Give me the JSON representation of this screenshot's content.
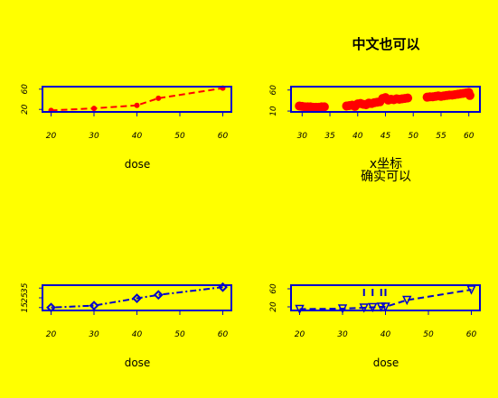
{
  "page": {
    "background": "#ffff00"
  },
  "chart_data": [
    {
      "type": "line",
      "title": "",
      "xlabel": "dose",
      "ylabel": "",
      "xlim": [
        18,
        62
      ],
      "ylim": [
        15,
        65
      ],
      "xticks": [
        "20",
        "30",
        "40",
        "50",
        "60"
      ],
      "yticks": [
        "20",
        "60"
      ],
      "grid": false,
      "series": [
        {
          "color": "#ff0000",
          "line": "dashed",
          "marker": "filled-circle",
          "x": [
            20,
            30,
            40,
            45,
            60
          ],
          "y": [
            18,
            22,
            28,
            42,
            62
          ]
        }
      ]
    },
    {
      "type": "scatter",
      "title": "中文也可以",
      "xlabel": "x坐标",
      "xlabel2": "确实可以",
      "ylabel": "",
      "xlim": [
        28,
        62
      ],
      "ylim": [
        8,
        68
      ],
      "xticks": [
        "30",
        "35",
        "40",
        "45",
        "50",
        "55",
        "60"
      ],
      "yticks": [
        "10",
        "60"
      ],
      "grid": false,
      "series": [
        {
          "color": "#ff0000",
          "marker": "filled-circle-large",
          "x": [
            29.5,
            30,
            30.5,
            31,
            31.5,
            32,
            32.5,
            33,
            33.5,
            34,
            38,
            38.5,
            39,
            39.5,
            40,
            40.5,
            41,
            41.5,
            42,
            42.5,
            43,
            43.5,
            44,
            44.5,
            45,
            45.5,
            46,
            46.5,
            47,
            47.5,
            48,
            48.5,
            49,
            52.5,
            53,
            53.5,
            54,
            54.5,
            55,
            55.5,
            56,
            56.5,
            57,
            57.5,
            58,
            58.5,
            59,
            59.5,
            60,
            60.2
          ],
          "y": [
            22,
            21,
            20,
            20,
            20,
            19,
            19,
            19,
            20,
            20,
            22,
            23,
            24,
            21,
            27,
            28,
            26,
            25,
            29,
            28,
            30,
            31,
            32,
            40,
            42,
            36,
            38,
            37,
            39,
            38,
            39,
            40,
            41,
            43,
            44,
            44,
            45,
            46,
            45,
            46,
            47,
            48,
            48,
            49,
            50,
            51,
            52,
            53,
            54,
            47
          ]
        }
      ]
    },
    {
      "type": "line",
      "title": "",
      "xlabel": "dose",
      "ylabel": "",
      "xlim": [
        18,
        62
      ],
      "ylim": [
        12,
        38
      ],
      "xticks": [
        "20",
        "30",
        "40",
        "50",
        "60"
      ],
      "yticks": [
        "15",
        "25",
        "35"
      ],
      "grid": false,
      "series": [
        {
          "color": "#0000cc",
          "line": "dotdash",
          "marker": "diamond",
          "x": [
            20,
            30,
            40,
            45,
            60
          ],
          "y": [
            15,
            17,
            24.5,
            28,
            36
          ]
        }
      ]
    },
    {
      "type": "line",
      "title": "",
      "xlabel": "dose",
      "ylabel": "",
      "xlim": [
        18,
        62
      ],
      "ylim": [
        12,
        68
      ],
      "xticks": [
        "20",
        "30",
        "40",
        "50",
        "60"
      ],
      "yticks": [
        "20",
        "60"
      ],
      "grid": false,
      "series": [
        {
          "color": "#0000cc",
          "line": "dashed",
          "marker": "triangle-down",
          "x": [
            20,
            30,
            35,
            37,
            39,
            40,
            45,
            60
          ],
          "y": [
            15,
            16,
            18,
            19,
            20,
            20,
            35,
            58
          ]
        }
      ],
      "rug": [
        35,
        37,
        39,
        40
      ]
    }
  ]
}
